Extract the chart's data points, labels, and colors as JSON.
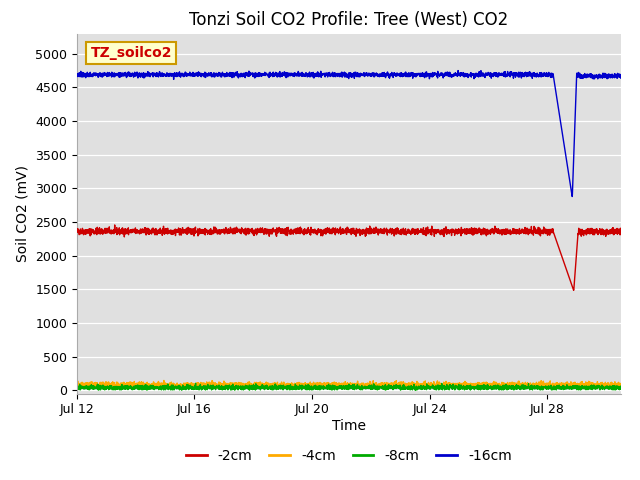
{
  "title": "Tonzi Soil CO2 Profile: Tree (West) CO2",
  "xlabel": "Time",
  "ylabel": "Soil CO2 (mV)",
  "ylim": [
    -50,
    5300
  ],
  "yticks": [
    0,
    500,
    1000,
    1500,
    2000,
    2500,
    3000,
    3500,
    4000,
    4500,
    5000
  ],
  "xtick_labels": [
    "Jul 12",
    "Jul 16",
    "Jul 20",
    "Jul 24",
    "Jul 28"
  ],
  "xtick_positions": [
    0,
    4,
    8,
    12,
    16
  ],
  "xlim": [
    0,
    18.5
  ],
  "series": {
    "2cm": {
      "color": "#cc0000",
      "base": 2360,
      "noise": 25,
      "drop_start": 16.2,
      "drop_min": 1480,
      "drop_bottom": 16.9,
      "drop_recover": 17.05,
      "recover_val": 2360
    },
    "4cm": {
      "color": "#ffaa00",
      "base": 80,
      "noise": 20,
      "clip_min": 20,
      "clip_max": 180
    },
    "8cm": {
      "color": "#00aa00",
      "base": 40,
      "noise": 18,
      "clip_min": 5,
      "clip_max": 120
    },
    "16cm": {
      "color": "#0000cc",
      "base": 4690,
      "noise": 18,
      "drop_start": 16.2,
      "drop_min": 2870,
      "drop_bottom": 16.85,
      "drop_recover": 17.0,
      "recover_val": 4670
    }
  },
  "legend_labels": [
    "-2cm",
    "-4cm",
    "-8cm",
    "-16cm"
  ],
  "legend_colors": [
    "#cc0000",
    "#ffaa00",
    "#00aa00",
    "#0000cc"
  ],
  "watermark_text": "TZ_soilco2",
  "watermark_bg": "#ffffcc",
  "watermark_color": "#cc0000",
  "watermark_border": "#cc9900",
  "bg_color": "#e0e0e0",
  "title_fontsize": 12,
  "axis_fontsize": 10,
  "tick_fontsize": 9
}
